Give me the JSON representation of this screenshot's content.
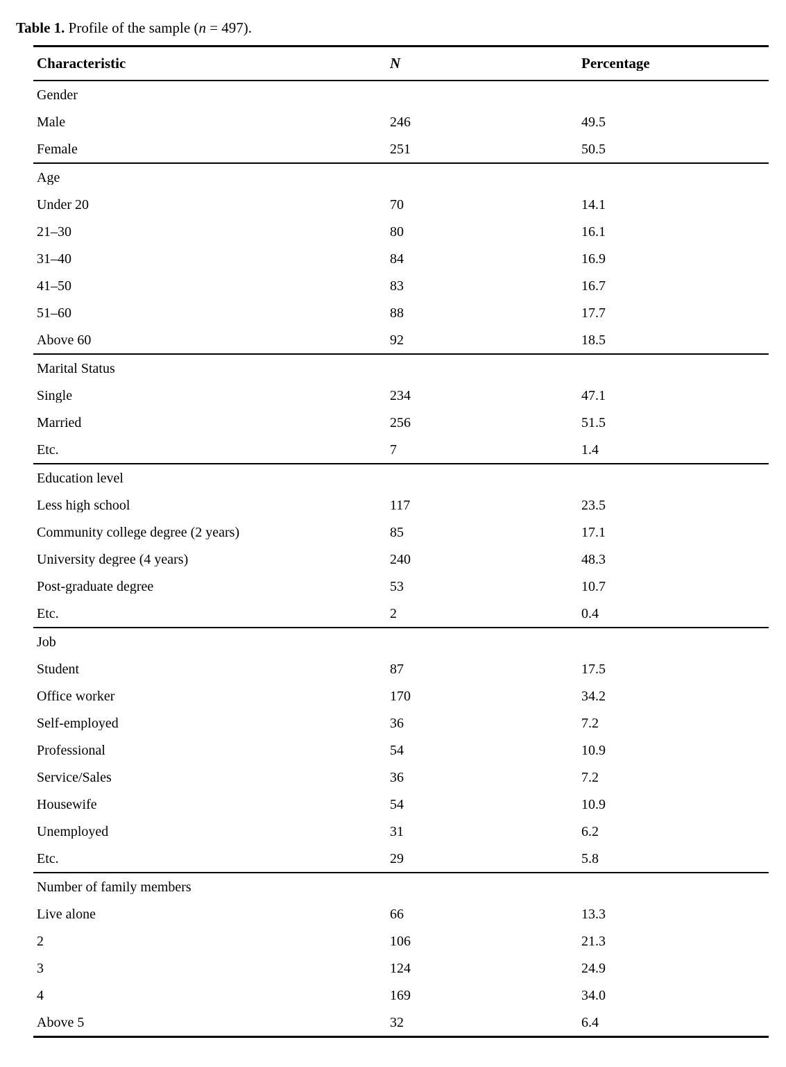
{
  "caption": {
    "label": "Table 1.",
    "before_n": " Profile of the sample (",
    "n": "n",
    "after_n": " = 497)."
  },
  "colors": {
    "background": "#ffffff",
    "text": "#000000",
    "rule": "#000000"
  },
  "table": {
    "columns": [
      "Characteristic",
      "N",
      "Percentage"
    ],
    "sections": [
      {
        "header": "Gender",
        "rows": [
          [
            "Male",
            "246",
            "49.5"
          ],
          [
            "Female",
            "251",
            "50.5"
          ]
        ]
      },
      {
        "header": "Age",
        "rows": [
          [
            "Under 20",
            "70",
            "14.1"
          ],
          [
            "21–30",
            "80",
            "16.1"
          ],
          [
            "31–40",
            "84",
            "16.9"
          ],
          [
            "41–50",
            "83",
            "16.7"
          ],
          [
            "51–60",
            "88",
            "17.7"
          ],
          [
            "Above 60",
            "92",
            "18.5"
          ]
        ]
      },
      {
        "header": "Marital Status",
        "rows": [
          [
            "Single",
            "234",
            "47.1"
          ],
          [
            "Married",
            "256",
            "51.5"
          ],
          [
            "Etc.",
            "7",
            "1.4"
          ]
        ]
      },
      {
        "header": "Education level",
        "rows": [
          [
            "Less high school",
            "117",
            "23.5"
          ],
          [
            "Community college degree (2 years)",
            "85",
            "17.1"
          ],
          [
            "University degree (4 years)",
            "240",
            "48.3"
          ],
          [
            "Post-graduate degree",
            "53",
            "10.7"
          ],
          [
            "Etc.",
            "2",
            "0.4"
          ]
        ]
      },
      {
        "header": "Job",
        "rows": [
          [
            "Student",
            "87",
            "17.5"
          ],
          [
            "Office worker",
            "170",
            "34.2"
          ],
          [
            "Self-employed",
            "36",
            "7.2"
          ],
          [
            "Professional",
            "54",
            "10.9"
          ],
          [
            "Service/Sales",
            "36",
            "7.2"
          ],
          [
            "Housewife",
            "54",
            "10.9"
          ],
          [
            "Unemployed",
            "31",
            "6.2"
          ],
          [
            "Etc.",
            "29",
            "5.8"
          ]
        ]
      },
      {
        "header": "Number of family members",
        "rows": [
          [
            "Live alone",
            "66",
            "13.3"
          ],
          [
            "2",
            "106",
            "21.3"
          ],
          [
            "3",
            "124",
            "24.9"
          ],
          [
            "4",
            "169",
            "34.0"
          ],
          [
            "Above 5",
            "32",
            "6.4"
          ]
        ]
      }
    ]
  }
}
